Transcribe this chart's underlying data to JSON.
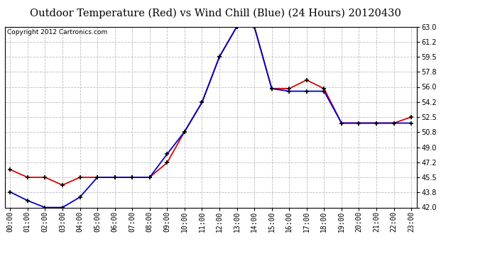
{
  "title": "Outdoor Temperature (Red) vs Wind Chill (Blue) (24 Hours) 20120430",
  "copyright": "Copyright 2012 Cartronics.com",
  "background_color": "#ffffff",
  "plot_bg_color": "#ffffff",
  "grid_color": "#bbbbbb",
  "hours": [
    0,
    1,
    2,
    3,
    4,
    5,
    6,
    7,
    8,
    9,
    10,
    11,
    12,
    13,
    14,
    15,
    16,
    17,
    18,
    19,
    20,
    21,
    22,
    23
  ],
  "red_temp": [
    46.4,
    45.5,
    45.5,
    44.6,
    45.5,
    45.5,
    45.5,
    45.5,
    45.5,
    47.2,
    50.8,
    54.2,
    59.5,
    63.0,
    63.0,
    55.8,
    55.8,
    56.8,
    55.8,
    51.8,
    51.8,
    51.8,
    51.8,
    52.5
  ],
  "blue_wc": [
    43.8,
    42.8,
    42.0,
    42.0,
    43.2,
    45.5,
    45.5,
    45.5,
    45.5,
    48.2,
    50.8,
    54.2,
    59.5,
    63.0,
    63.0,
    55.8,
    55.5,
    55.5,
    55.5,
    51.8,
    51.8,
    51.8,
    51.8,
    51.8
  ],
  "ylim": [
    42.0,
    63.0
  ],
  "yticks": [
    42.0,
    43.8,
    45.5,
    47.2,
    49.0,
    50.8,
    52.5,
    54.2,
    56.0,
    57.8,
    59.5,
    61.2,
    63.0
  ],
  "red_color": "#dd0000",
  "blue_color": "#0000cc",
  "marker_color": "#000000",
  "title_fontsize": 10.5,
  "copyright_fontsize": 6.5,
  "tick_fontsize": 7,
  "ylabel_fontsize": 7
}
